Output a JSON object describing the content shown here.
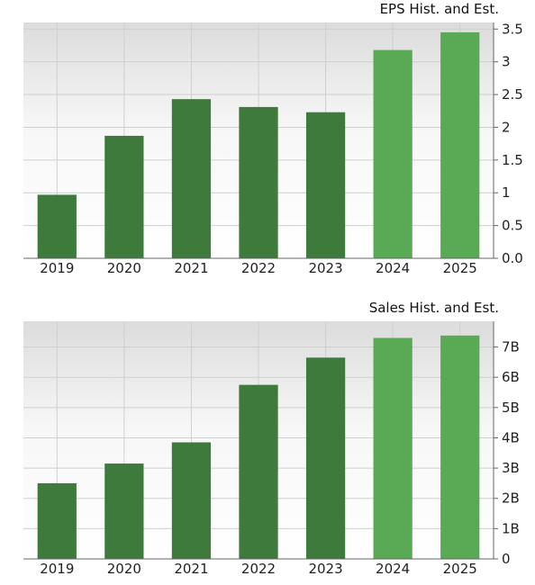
{
  "chart_data": [
    {
      "type": "bar",
      "title": "EPS Hist. and Est.",
      "xlabel": "",
      "ylabel": "",
      "categories": [
        "2019",
        "2020",
        "2021",
        "2022",
        "2023",
        "2024",
        "2025"
      ],
      "values": [
        0.97,
        1.87,
        2.43,
        2.31,
        2.23,
        3.18,
        3.45
      ],
      "estimate": [
        false,
        false,
        false,
        false,
        false,
        true,
        true
      ],
      "ylim": [
        0,
        3.6
      ],
      "yticks": [
        0,
        0.5,
        1,
        1.5,
        2,
        2.5,
        3,
        3.5
      ],
      "ytick_labels": [
        "0.0",
        "0.5",
        "1",
        "1.5",
        "2",
        "2.5",
        "3",
        "3.5"
      ],
      "grid": true,
      "colors": {
        "historical": "#3e7a3b",
        "estimate": "#5aaa55"
      }
    },
    {
      "type": "bar",
      "title": "Sales Hist. and Est.",
      "xlabel": "",
      "ylabel": "",
      "categories": [
        "2019",
        "2020",
        "2021",
        "2022",
        "2023",
        "2024",
        "2025"
      ],
      "values": [
        2.5,
        3.15,
        3.85,
        5.75,
        6.65,
        7.3,
        7.38
      ],
      "estimate": [
        false,
        false,
        false,
        false,
        false,
        true,
        true
      ],
      "ylim": [
        0,
        7.85
      ],
      "yticks": [
        0,
        1,
        2,
        3,
        4,
        5,
        6,
        7
      ],
      "ytick_labels": [
        "0",
        "1B",
        "2B",
        "3B",
        "4B",
        "5B",
        "6B",
        "7B"
      ],
      "grid": true,
      "colors": {
        "historical": "#3e7a3b",
        "estimate": "#5aaa55"
      }
    }
  ]
}
